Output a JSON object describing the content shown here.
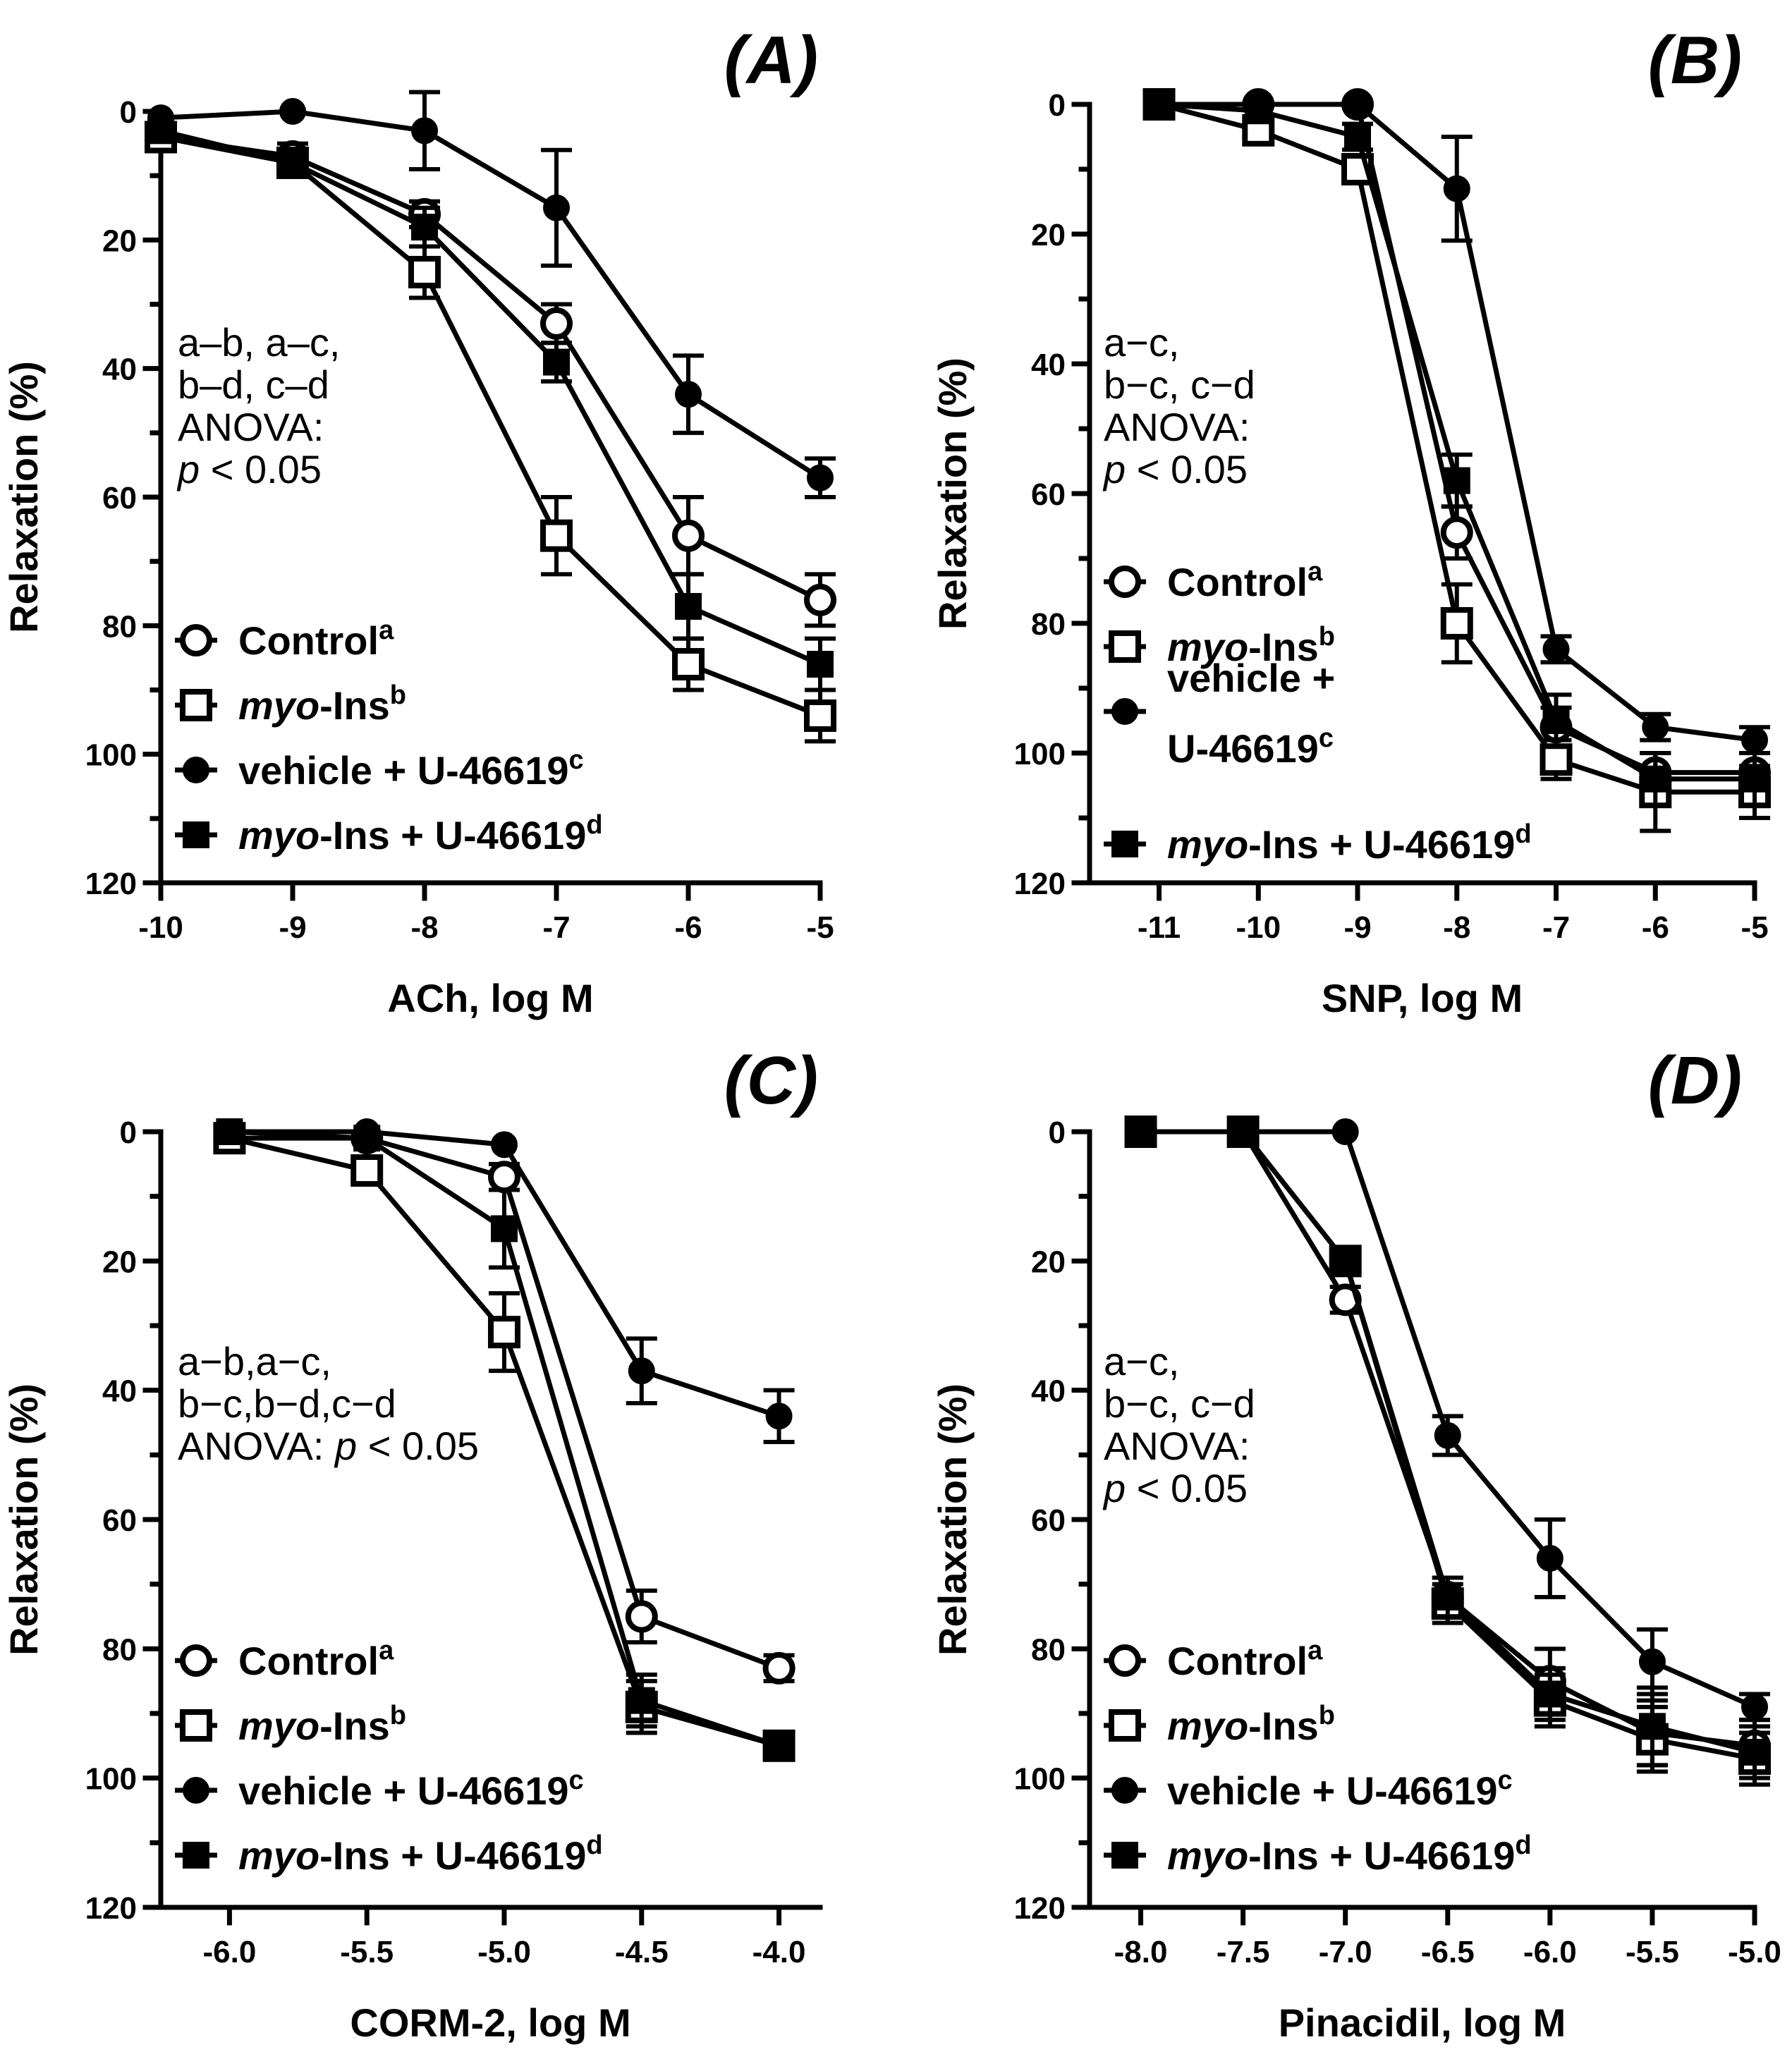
{
  "chart_data": [
    {
      "type": "line",
      "panel": "(A)",
      "xlabel": "ACh, log M",
      "ylabel": "Relaxation (%)",
      "xlim": [
        -10,
        -5
      ],
      "ylim": [
        0,
        120
      ],
      "y_inverted": true,
      "xticks": [
        -10,
        -9,
        -8,
        -7,
        -6,
        -5
      ],
      "xtick_labels": [
        "-10",
        "-9",
        "-8",
        "-7",
        "-6",
        "-5"
      ],
      "yticks": [
        0,
        20,
        40,
        60,
        80,
        100,
        120
      ],
      "ytick_labels": [
        "0",
        "20",
        "40",
        "60",
        "80",
        "100",
        "120"
      ],
      "annotation": [
        "a–b, a–c,",
        "b–d, c–d",
        "ANOVA:",
        "p < 0.05"
      ],
      "x": [
        -10,
        -9,
        -8,
        -7,
        -6,
        -5
      ],
      "series": [
        {
          "name": "Control",
          "superscript": "a",
          "marker": "open-circle",
          "values": [
            4,
            7,
            16,
            33,
            66,
            76
          ],
          "errors": [
            2,
            2,
            2,
            3,
            6,
            4
          ]
        },
        {
          "name": "myo-Ins",
          "superscript": "b",
          "marker": "open-square",
          "values": [
            4,
            8,
            25,
            66,
            86,
            94
          ],
          "errors": [
            2,
            2,
            4,
            6,
            4,
            4
          ]
        },
        {
          "name": "vehicle + U-46619",
          "superscript": "c",
          "marker": "filled-circle",
          "values": [
            1,
            0,
            3,
            15,
            44,
            57
          ],
          "errors": [
            1,
            1,
            6,
            9,
            6,
            3
          ]
        },
        {
          "name": "myo-Ins + U-46619",
          "superscript": "d",
          "marker": "filled-square",
          "values": [
            3,
            8,
            18,
            39,
            77,
            86
          ],
          "errors": [
            1,
            2,
            3,
            3,
            5,
            4
          ]
        }
      ]
    },
    {
      "type": "line",
      "panel": "(B)",
      "xlabel": "SNP, log M",
      "ylabel": "Relaxation (%)",
      "xlim": [
        -11.7,
        -5
      ],
      "ylim": [
        0,
        120
      ],
      "y_inverted": true,
      "xticks": [
        -11,
        -10,
        -9,
        -8,
        -7,
        -6,
        -5
      ],
      "xtick_labels": [
        "-11",
        "-10",
        "-9",
        "-8",
        "-7",
        "-6",
        "-5"
      ],
      "yticks": [
        0,
        20,
        40,
        60,
        80,
        100,
        120
      ],
      "ytick_labels": [
        "0",
        "20",
        "40",
        "60",
        "80",
        "100",
        "120"
      ],
      "annotation": [
        "a−c,",
        "b−c, c−d",
        "ANOVA:",
        "p < 0.05"
      ],
      "x": [
        -11,
        -10,
        -9,
        -8,
        -7,
        -6,
        -5
      ],
      "series": [
        {
          "name": "Control",
          "superscript": "a",
          "marker": "open-circle",
          "values": [
            0,
            0,
            0,
            66,
            96,
            103,
            103
          ],
          "errors": [
            1,
            1,
            1,
            4,
            3,
            3,
            3
          ]
        },
        {
          "name": "myo-Ins",
          "superscript": "b",
          "marker": "open-square",
          "values": [
            0,
            4,
            10,
            80,
            101,
            106,
            106
          ],
          "errors": [
            1,
            2,
            2,
            6,
            3,
            6,
            4
          ]
        },
        {
          "name": "vehicle + U-46619",
          "superscript": "c",
          "marker": "filled-circle",
          "values": [
            0,
            0,
            0,
            13,
            84,
            96,
            98
          ],
          "errors": [
            1,
            1,
            1,
            8,
            2,
            2,
            2
          ]
        },
        {
          "name": "myo-Ins + U-46619",
          "superscript": "d",
          "marker": "filled-square",
          "values": [
            0,
            1,
            5,
            58,
            95,
            104,
            104
          ],
          "errors": [
            1,
            1,
            2,
            4,
            4,
            4,
            4
          ]
        }
      ]
    },
    {
      "type": "line",
      "panel": "(C)",
      "xlabel": "CORM-2, log M",
      "ylabel": "Relaxation (%)",
      "xlim": [
        -6.25,
        -3.85
      ],
      "ylim": [
        0,
        120
      ],
      "y_inverted": true,
      "xticks": [
        -6.0,
        -5.5,
        -5.0,
        -4.5,
        -4.0
      ],
      "xtick_labels": [
        "-6.0",
        "-5.5",
        "-5.0",
        "-4.5",
        "-4.0"
      ],
      "yticks": [
        0,
        20,
        40,
        60,
        80,
        100,
        120
      ],
      "ytick_labels": [
        "0",
        "20",
        "40",
        "60",
        "80",
        "100",
        "120"
      ],
      "annotation": [
        "a−b,a−c,",
        "b−c,b−d,c−d",
        "ANOVA: ",
        "p < 0.05"
      ],
      "x": [
        -6.0,
        -5.5,
        -5.0,
        -4.5,
        -4.0
      ],
      "series": [
        {
          "name": "Control",
          "superscript": "a",
          "marker": "open-circle",
          "values": [
            1,
            1,
            7,
            75,
            83
          ],
          "errors": [
            1,
            1,
            2,
            4,
            2
          ]
        },
        {
          "name": "myo-Ins",
          "superscript": "b",
          "marker": "open-square",
          "values": [
            1,
            6,
            31,
            89,
            95
          ],
          "errors": [
            1,
            2,
            6,
            4,
            2
          ]
        },
        {
          "name": "vehicle + U-46619",
          "superscript": "c",
          "marker": "filled-circle",
          "values": [
            0,
            0,
            2,
            37,
            44
          ],
          "errors": [
            1,
            1,
            1,
            5,
            4
          ]
        },
        {
          "name": "myo-Ins + U-46619",
          "superscript": "d",
          "marker": "filled-square",
          "values": [
            0,
            1,
            15,
            88,
            95
          ],
          "errors": [
            1,
            1,
            6,
            4,
            2
          ]
        }
      ]
    },
    {
      "type": "line",
      "panel": "(D)",
      "xlabel": "Pinacidil, log M",
      "ylabel": "Relaxation (%)",
      "xlim": [
        -8.25,
        -5
      ],
      "ylim": [
        0,
        120
      ],
      "y_inverted": true,
      "xticks": [
        -8.0,
        -7.5,
        -7.0,
        -6.5,
        -6.0,
        -5.5,
        -5.0
      ],
      "xtick_labels": [
        "-8.0",
        "-7.5",
        "-7.0",
        "-6.5",
        "-6.0",
        "-5.5",
        "-5.0"
      ],
      "yticks": [
        0,
        20,
        40,
        60,
        80,
        100,
        120
      ],
      "ytick_labels": [
        "0",
        "20",
        "40",
        "60",
        "80",
        "100",
        "120"
      ],
      "annotation": [
        "a−c,",
        "b−c, c−d",
        "ANOVA:",
        "p < 0.05"
      ],
      "x": [
        -8.0,
        -7.5,
        -7.0,
        -6.5,
        -6.0,
        -5.5,
        -5.0
      ],
      "series": [
        {
          "name": "Control",
          "superscript": "a",
          "marker": "open-circle",
          "values": [
            0,
            0,
            26,
            72,
            85,
            93,
            95
          ],
          "errors": [
            1,
            1,
            2,
            3,
            5,
            5,
            4
          ]
        },
        {
          "name": "myo-Ins",
          "superscript": "b",
          "marker": "open-square",
          "values": [
            0,
            0,
            20,
            73,
            88,
            94,
            97
          ],
          "errors": [
            1,
            1,
            2,
            3,
            4,
            5,
            4
          ]
        },
        {
          "name": "vehicle + U-46619",
          "superscript": "c",
          "marker": "filled-circle",
          "values": [
            0,
            0,
            0,
            47,
            66,
            82,
            89
          ],
          "errors": [
            1,
            1,
            1,
            3,
            6,
            5,
            2
          ]
        },
        {
          "name": "myo-Ins + U-46619",
          "superscript": "d",
          "marker": "filled-square",
          "values": [
            0,
            0,
            20,
            72,
            87,
            92,
            96
          ],
          "errors": [
            1,
            1,
            2,
            3,
            4,
            6,
            4
          ]
        }
      ]
    }
  ]
}
